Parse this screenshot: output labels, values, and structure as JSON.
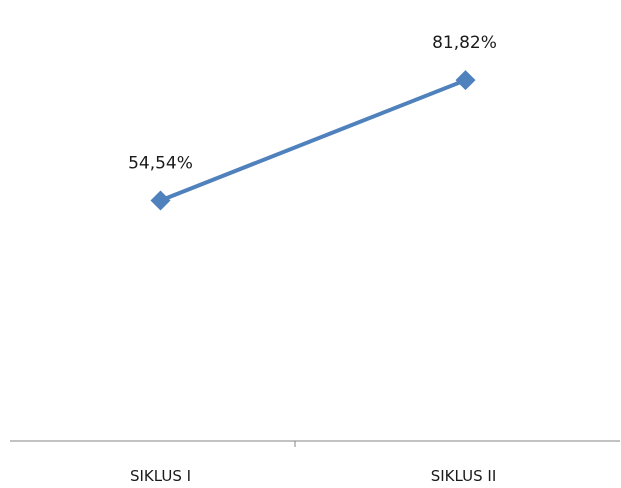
{
  "chart_data": {
    "type": "line",
    "categories": [
      "SIKLUS I",
      "SIKLUS II"
    ],
    "series": [
      {
        "values": [
          54.54,
          81.82
        ],
        "labels": [
          "54,54%",
          "81,82%"
        ]
      }
    ],
    "title": "",
    "xlabel": "",
    "ylabel": "",
    "ylim": [
      0,
      100
    ],
    "grid": false,
    "legend": "none",
    "line_color": "#4f81bd",
    "axis_color": "#868686"
  }
}
